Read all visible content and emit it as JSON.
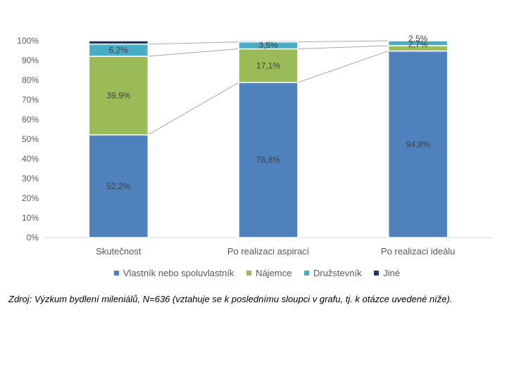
{
  "chart_data": {
    "type": "bar",
    "stacked": true,
    "percent": true,
    "categories": [
      "Skutečnost",
      "Po realizaci aspirací",
      "Po realizaci ideálu"
    ],
    "series": [
      {
        "name": "Vlastník nebo spoluvlastník",
        "values": [
          52.2,
          78.8,
          94.8
        ],
        "labels": [
          "52,2%",
          "78,8%",
          "94,8%"
        ],
        "color": "#4f81bd"
      },
      {
        "name": "Nájemce",
        "values": [
          39.9,
          17.1,
          2.7
        ],
        "labels": [
          "39,9%",
          "17,1%",
          "2,7%"
        ],
        "color": "#9bbb59"
      },
      {
        "name": "Družstevník",
        "values": [
          6.2,
          3.5,
          2.5
        ],
        "labels": [
          "6,2%",
          "3,5%",
          "2,5%"
        ],
        "color": "#4bacc6"
      },
      {
        "name": "Jiné",
        "values": [
          1.7,
          0.6,
          0.0
        ],
        "labels": [
          "",
          "",
          ""
        ],
        "color": "#1f3864"
      }
    ],
    "y_ticks": [
      "0%",
      "10%",
      "20%",
      "30%",
      "40%",
      "50%",
      "60%",
      "70%",
      "80%",
      "90%",
      "100%"
    ],
    "ylim": [
      0,
      100
    ],
    "grid": false,
    "series_lines": true,
    "legend_position": "bottom"
  },
  "source_note": "Zdroj: Výzkum bydlení mileniálů, N=636 (vztahuje se k poslednímu sloupci v grafu, tj. k otázce uvedené níže)."
}
